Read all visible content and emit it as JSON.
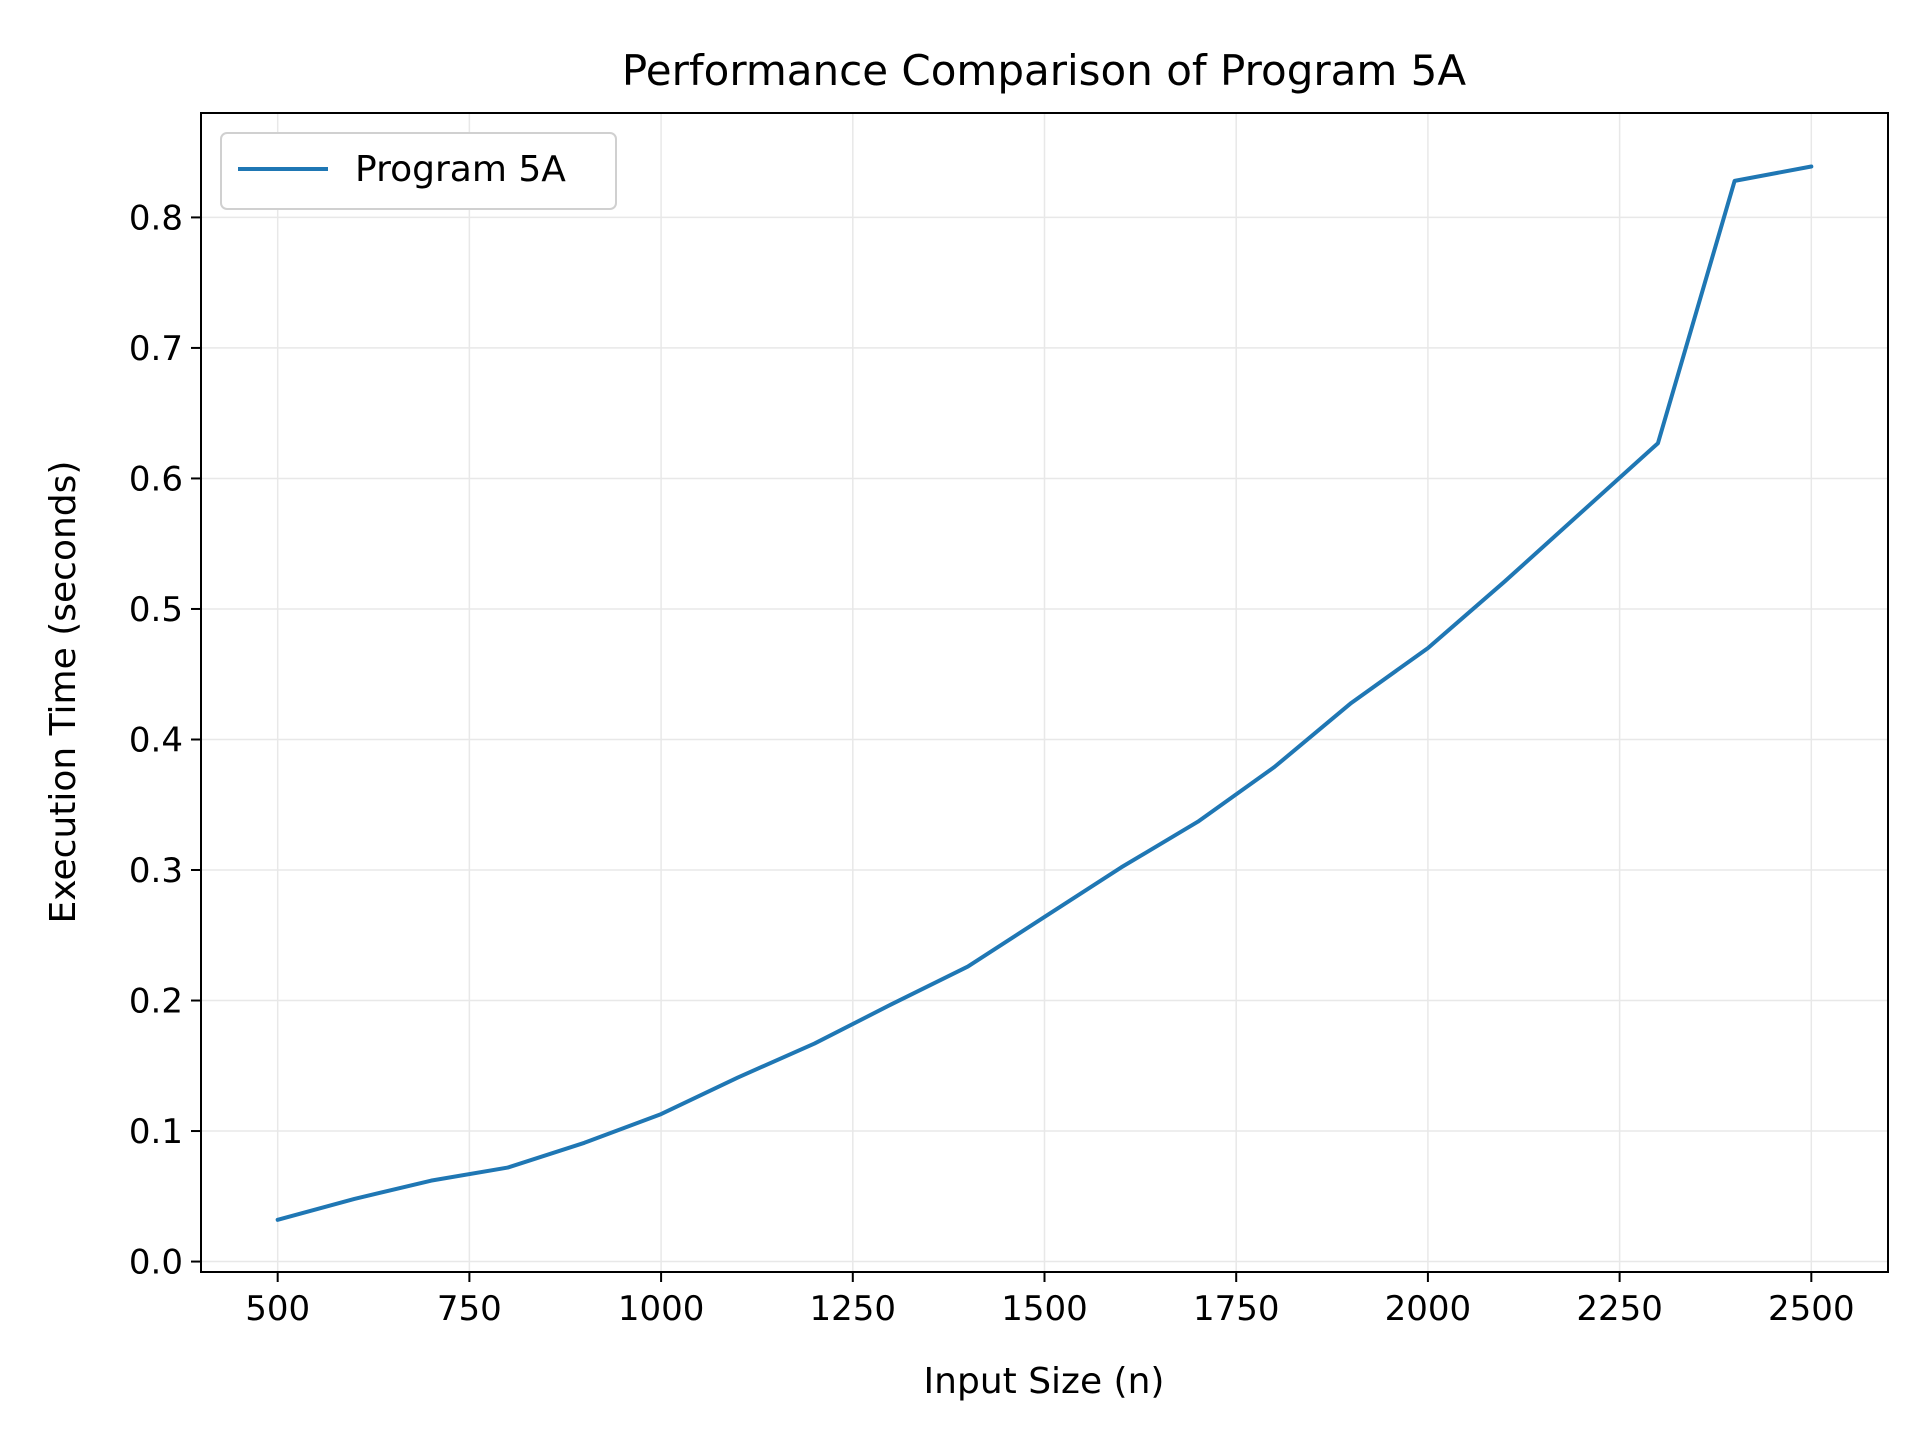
{
  "chart_data": {
    "type": "line",
    "title": "Performance Comparison of Program 5A",
    "xlabel": "Input Size (n)",
    "ylabel": "Execution Time (seconds)",
    "xlim": [
      400,
      2600
    ],
    "ylim": [
      -0.008,
      0.88
    ],
    "xticks": [
      500,
      750,
      1000,
      1250,
      1500,
      1750,
      2000,
      2250,
      2500
    ],
    "xtick_labels": [
      "500",
      "750",
      "1000",
      "1250",
      "1500",
      "1750",
      "2000",
      "2250",
      "2500"
    ],
    "yticks": [
      0.0,
      0.1,
      0.2,
      0.3,
      0.4,
      0.5,
      0.6,
      0.7,
      0.8
    ],
    "ytick_labels": [
      "0.0",
      "0.1",
      "0.2",
      "0.3",
      "0.4",
      "0.5",
      "0.6",
      "0.7",
      "0.8"
    ],
    "grid": true,
    "legend_position": "top-left",
    "x": [
      500,
      600,
      700,
      800,
      900,
      1000,
      1100,
      1200,
      1300,
      1400,
      1500,
      1600,
      1700,
      1800,
      1900,
      2000,
      2100,
      2200,
      2300,
      2400,
      2500
    ],
    "series": [
      {
        "name": "Program 5A",
        "color": "#1f77b4",
        "values": [
          0.032,
          0.048,
          0.062,
          0.072,
          0.091,
          0.113,
          0.141,
          0.167,
          0.197,
          0.226,
          0.264,
          0.302,
          0.337,
          0.379,
          0.428,
          0.47,
          0.521,
          0.574,
          0.627,
          0.828,
          0.839
        ]
      }
    ]
  }
}
